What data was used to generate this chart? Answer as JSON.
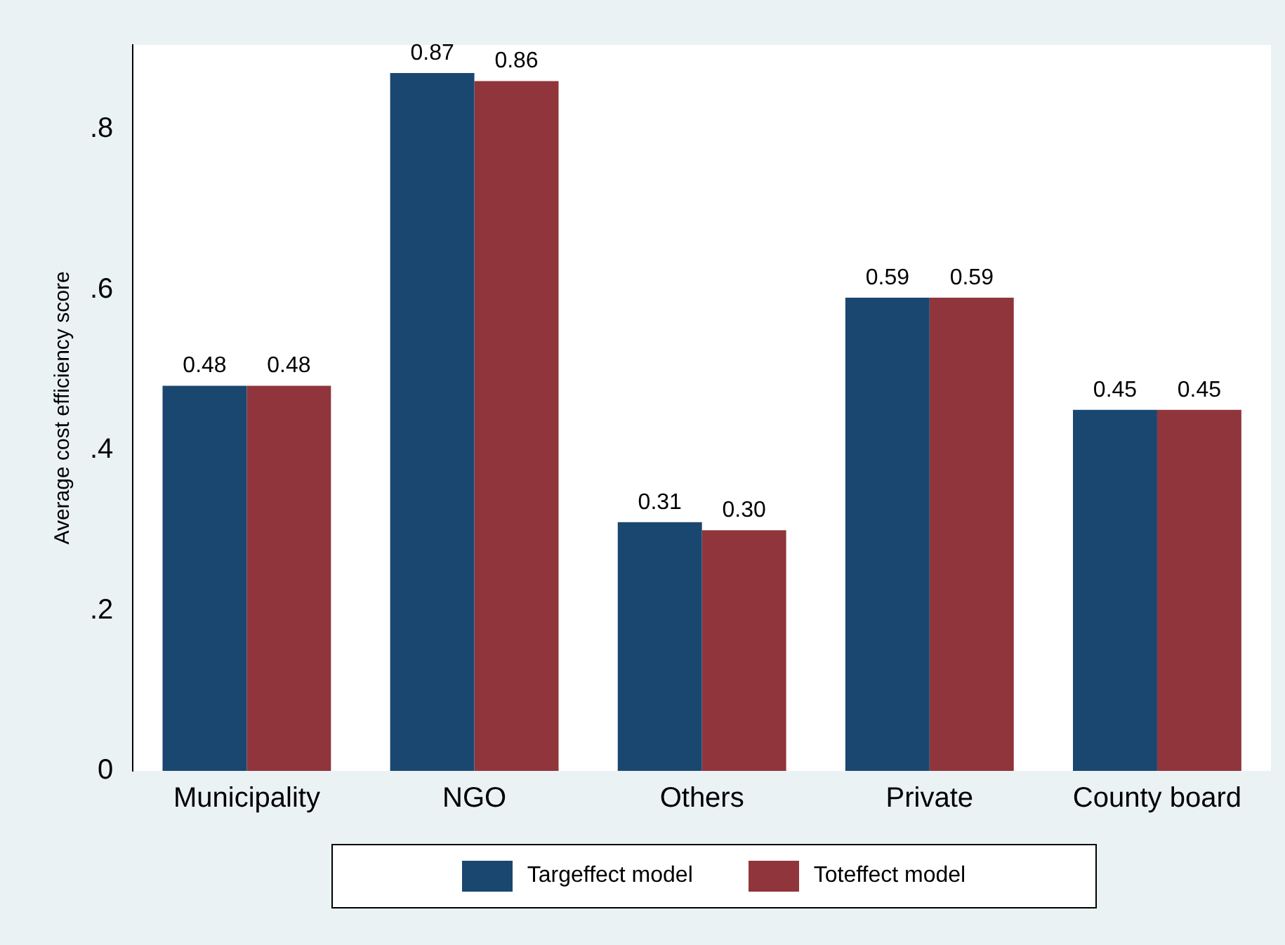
{
  "chart_data": {
    "type": "bar",
    "ylabel": "Average cost efficiency score",
    "categories": [
      "Municipality",
      "NGO",
      "Others",
      "Private",
      "County board"
    ],
    "series": [
      {
        "name": "Targeffect model",
        "color": "#1a476f",
        "values": [
          0.48,
          0.87,
          0.31,
          0.59,
          0.45
        ],
        "value_labels": [
          "0.48",
          "0.87",
          "0.31",
          "0.59",
          "0.45"
        ]
      },
      {
        "name": "Toteffect model",
        "color": "#90353b",
        "values": [
          0.48,
          0.86,
          0.3,
          0.59,
          0.45
        ],
        "value_labels": [
          "0.48",
          "0.86",
          "0.30",
          "0.59",
          "0.45"
        ]
      }
    ],
    "ylim": [
      0,
      0.905
    ],
    "yticks": [
      0,
      {
        "value": 0.2,
        "label": ".2"
      },
      {
        "value": 0.4,
        "label": ".4"
      },
      {
        "value": 0.6,
        "label": ".6"
      },
      {
        "value": 0.8,
        "label": ".8"
      }
    ],
    "grid": false,
    "legend": "bottom"
  }
}
